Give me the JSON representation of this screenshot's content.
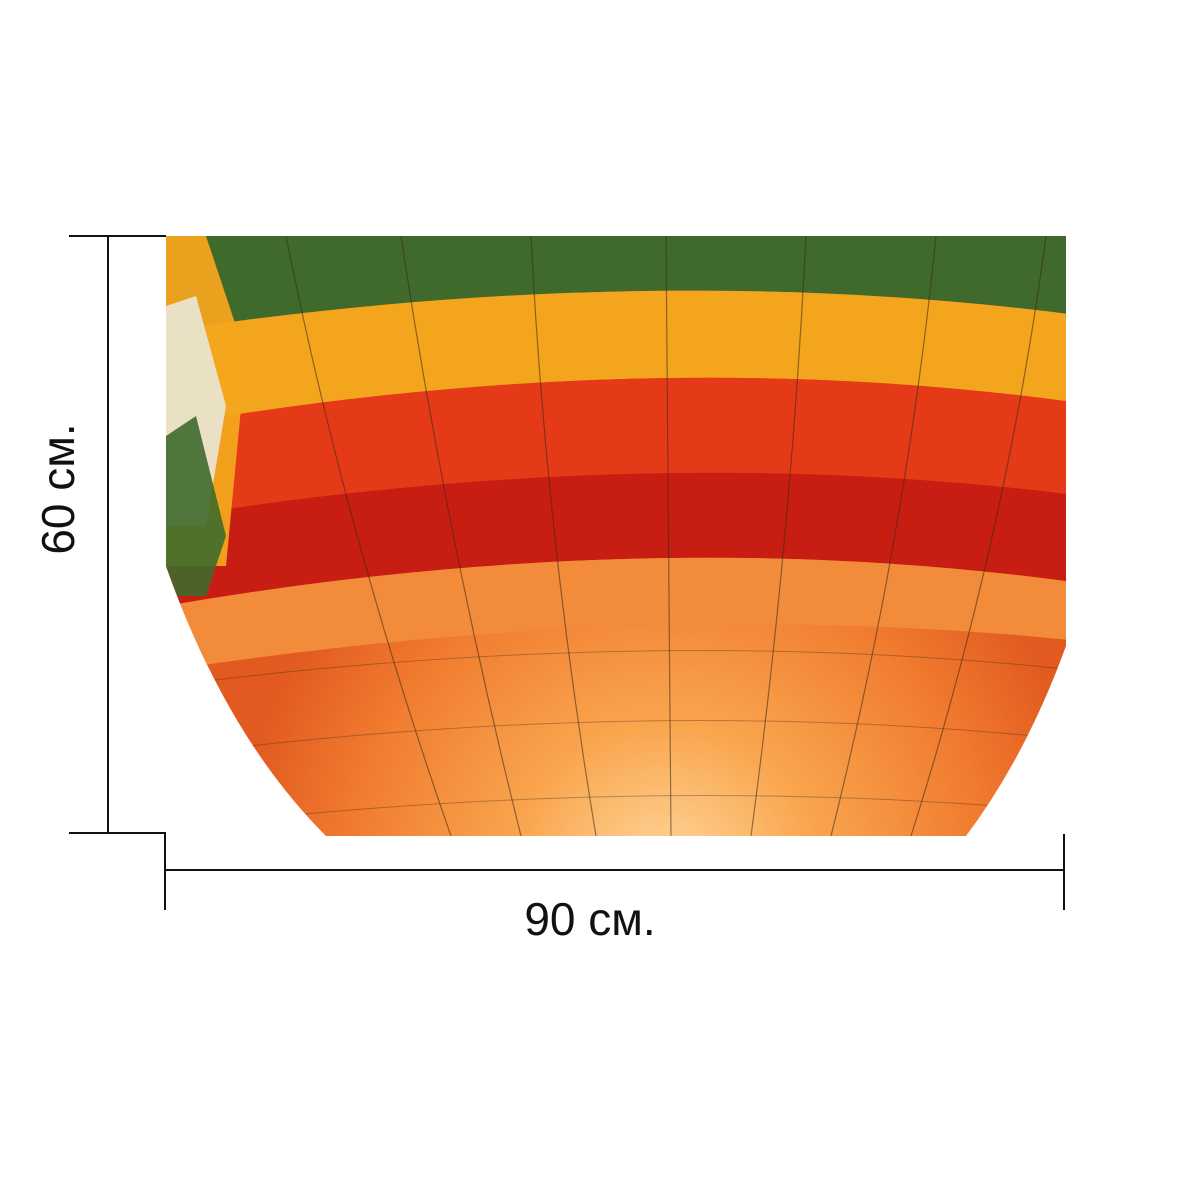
{
  "product": {
    "image_subject": "hot-air-balloon-envelope",
    "dimensions": {
      "width_label": "90 см.",
      "height_label": "60 см."
    }
  },
  "colors": {
    "cream": "#e9e4cf",
    "yellow": "#f3a51e",
    "green": "#3f6a2c",
    "red": "#e53a18",
    "deep_red": "#c81d12",
    "glow_orange": "#f7953a",
    "glow_light": "#ffd089",
    "line": "#111111",
    "background": "#ffffff"
  }
}
